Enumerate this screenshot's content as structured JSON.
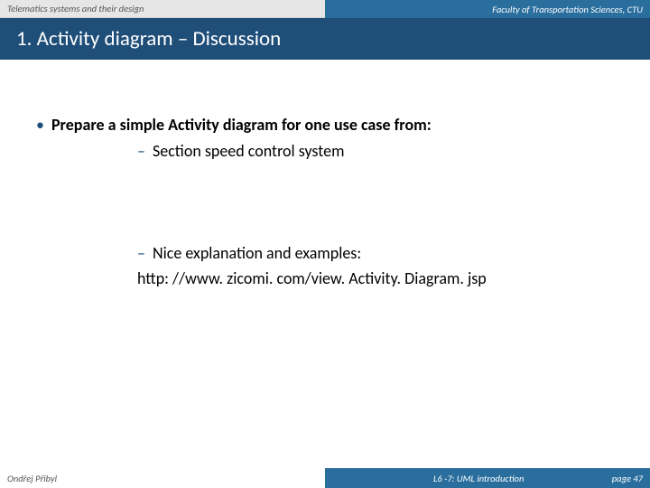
{
  "header": {
    "left": "Telematics systems and their design",
    "right": "Faculty of Transportation Sciences, CTU"
  },
  "title": "1. Activity diagram – Discussion",
  "content": {
    "bullet_main": "Prepare a simple Activity diagram for one use case from:",
    "sub1": "Section speed control system",
    "sub2": "Nice explanation and examples:",
    "url": "http: //www. zicomi. com/view. Activity. Diagram. jsp"
  },
  "footer": {
    "author": "Ondřej Přibyl",
    "course": "L6 -7: UML introduction",
    "page_label": "page 47"
  },
  "colors": {
    "title_bg": "#1f4e79",
    "topright_bg": "#2a6e9e",
    "topleft_bg": "#e6e6e6",
    "accent": "#1f4e79"
  }
}
